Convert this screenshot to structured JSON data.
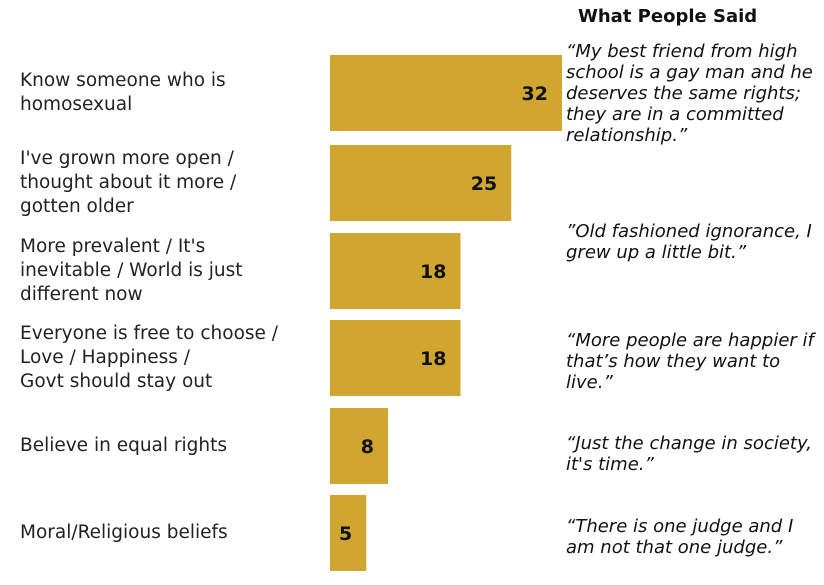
{
  "chart_data": {
    "type": "bar",
    "orientation": "horizontal",
    "categories": [
      "Know someone who is homosexual",
      "I've grown more open / thought about it more / gotten older",
      "More prevalent / It's inevitable / World is just different now",
      "Everyone is free to choose / Love / Happiness / Govt should stay out",
      "Believe in equal rights",
      "Moral/Religious beliefs"
    ],
    "category_lines": [
      [
        "Know someone who is",
        "homosexual"
      ],
      [
        "I've grown more open /",
        "thought about it more /",
        "gotten older"
      ],
      [
        "More prevalent / It's",
        "inevitable / World is just",
        "different now"
      ],
      [
        "Everyone is free to choose /",
        "Love / Happiness /",
        "Govt should stay out"
      ],
      [
        "Believe in equal rights"
      ],
      [
        "Moral/Religious beliefs"
      ]
    ],
    "values": [
      32,
      25,
      18,
      18,
      8,
      5
    ],
    "value_labels": [
      "32",
      "25",
      "18",
      "18",
      "8",
      "5"
    ],
    "bar_color": "#d0a630",
    "grid": false,
    "legend": "none"
  },
  "quotes": {
    "title": "What People Said",
    "items": [
      "“My best friend from high school is a gay man and he deserves the same rights; they are in a committed relationship.”",
      "”Old fashioned ignorance, I grew up a little bit.”",
      "“More people are happier if that’s how they want to live.”",
      "“Just the change in society, it's time.”",
      "“There is one judge and I am not that one judge.”"
    ]
  }
}
